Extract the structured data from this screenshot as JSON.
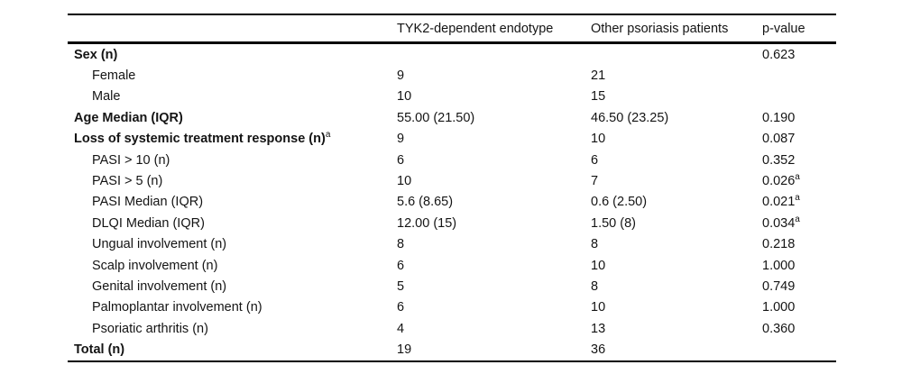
{
  "colors": {
    "background": "#ffffff",
    "text": "#141414",
    "rule": "#000000"
  },
  "table": {
    "columns": [
      "",
      "TYK2-dependent endotype",
      "Other psoriasis patients",
      "p-value"
    ],
    "rows": [
      {
        "label": "Sex (n)",
        "label_sup": "",
        "bold": true,
        "indent": false,
        "tyk2": "",
        "other": "",
        "p": "0.623",
        "p_sup": ""
      },
      {
        "label": "Female",
        "label_sup": "",
        "bold": false,
        "indent": true,
        "tyk2": "9",
        "other": "21",
        "p": "",
        "p_sup": ""
      },
      {
        "label": "Male",
        "label_sup": "",
        "bold": false,
        "indent": true,
        "tyk2": "10",
        "other": "15",
        "p": "",
        "p_sup": ""
      },
      {
        "label": "Age Median (IQR)",
        "label_sup": "",
        "bold": true,
        "indent": false,
        "tyk2": "55.00 (21.50)",
        "other": "46.50 (23.25)",
        "p": "0.190",
        "p_sup": ""
      },
      {
        "label": "Loss of systemic treatment response (n)",
        "label_sup": "a",
        "bold": true,
        "indent": false,
        "tyk2": "9",
        "other": "10",
        "p": "0.087",
        "p_sup": ""
      },
      {
        "label": "PASI > 10 (n)",
        "label_sup": "",
        "bold": false,
        "indent": true,
        "tyk2": "6",
        "other": "6",
        "p": "0.352",
        "p_sup": ""
      },
      {
        "label": "PASI > 5 (n)",
        "label_sup": "",
        "bold": false,
        "indent": true,
        "tyk2": "10",
        "other": "7",
        "p": "0.026",
        "p_sup": "a"
      },
      {
        "label": "PASI Median (IQR)",
        "label_sup": "",
        "bold": false,
        "indent": true,
        "tyk2": "5.6 (8.65)",
        "other": "0.6 (2.50)",
        "p": "0.021",
        "p_sup": "a"
      },
      {
        "label": "DLQI Median (IQR)",
        "label_sup": "",
        "bold": false,
        "indent": true,
        "tyk2": "12.00 (15)",
        "other": "1.50 (8)",
        "p": "0.034",
        "p_sup": "a"
      },
      {
        "label": "Ungual involvement (n)",
        "label_sup": "",
        "bold": false,
        "indent": true,
        "tyk2": "8",
        "other": "8",
        "p": "0.218",
        "p_sup": ""
      },
      {
        "label": "Scalp involvement (n)",
        "label_sup": "",
        "bold": false,
        "indent": true,
        "tyk2": "6",
        "other": "10",
        "p": "1.000",
        "p_sup": ""
      },
      {
        "label": "Genital involvement (n)",
        "label_sup": "",
        "bold": false,
        "indent": true,
        "tyk2": "5",
        "other": "8",
        "p": "0.749",
        "p_sup": ""
      },
      {
        "label": "Palmoplantar involvement (n)",
        "label_sup": "",
        "bold": false,
        "indent": true,
        "tyk2": "6",
        "other": "10",
        "p": "1.000",
        "p_sup": ""
      },
      {
        "label": "Psoriatic arthritis (n)",
        "label_sup": "",
        "bold": false,
        "indent": true,
        "tyk2": "4",
        "other": "13",
        "p": "0.360",
        "p_sup": ""
      },
      {
        "label": "Total (n)",
        "label_sup": "",
        "bold": true,
        "indent": false,
        "tyk2": "19",
        "other": "36",
        "p": "",
        "p_sup": ""
      }
    ]
  }
}
